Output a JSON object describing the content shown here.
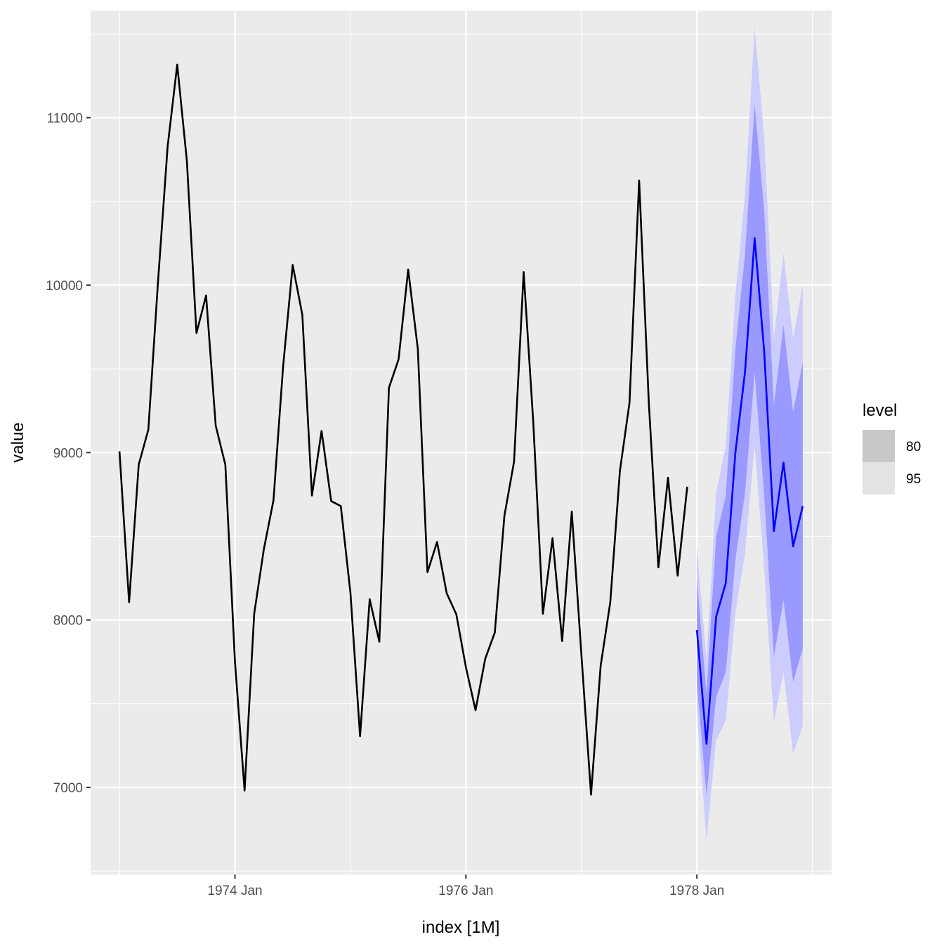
{
  "chart_data": {
    "type": "line",
    "xlabel": "index [1M]",
    "ylabel": "value",
    "x_ticks": [
      "1974 Jan",
      "1976 Jan",
      "1978 Jan"
    ],
    "y_ticks": [
      7000,
      8000,
      9000,
      10000,
      11000
    ],
    "xlim": [
      "1972-10",
      "1979-03"
    ],
    "ylim": [
      6480,
      11640
    ],
    "grid": true,
    "legend": {
      "title": "level",
      "placement": "right",
      "entries": [
        {
          "label": "80",
          "color": "#c8c8c8"
        },
        {
          "label": "95",
          "color": "#e3e3e3"
        }
      ]
    },
    "colors": {
      "panel": "#ebebeb",
      "grid": "#ffffff",
      "history": "#000000",
      "forecast": "#0000ff",
      "interval_80": "#9999ff",
      "interval_95": "#ccccff"
    },
    "history": {
      "start": "1973-01",
      "values": [
        9007,
        8106,
        8928,
        9137,
        10017,
        10826,
        11317,
        10744,
        9713,
        9938,
        9161,
        8927,
        7750,
        6981,
        8038,
        8422,
        8714,
        9512,
        10120,
        9823,
        8743,
        9129,
        8710,
        8680,
        8162,
        7306,
        8124,
        7870,
        9387,
        9556,
        10093,
        9620,
        8285,
        8466,
        8160,
        8034,
        7717,
        7461,
        7767,
        7925,
        8623,
        8945,
        10078,
        9179,
        8037,
        8488,
        7874,
        8647,
        7792,
        6957,
        7726,
        8106,
        8890,
        9299,
        10625,
        9302,
        8314,
        8850,
        8265,
        8796
      ]
    },
    "forecast": {
      "start": "1978-01",
      "mean": [
        7940,
        7260,
        8020,
        8220,
        9000,
        9480,
        10280,
        9600,
        8530,
        8940,
        8440,
        8680
      ],
      "lower_80": [
        7620,
        6950,
        7540,
        7690,
        8360,
        8760,
        9480,
        8740,
        7780,
        8120,
        7630,
        7830
      ],
      "upper_80": [
        8240,
        7560,
        8500,
        8740,
        9620,
        10180,
        11080,
        10440,
        9280,
        9760,
        9240,
        9540
      ],
      "lower_95": [
        7460,
        6680,
        7280,
        7400,
        8040,
        8400,
        9040,
        8300,
        7390,
        7690,
        7200,
        7370
      ],
      "upper_95": [
        8440,
        7760,
        8760,
        9040,
        9940,
        10540,
        11540,
        10880,
        9680,
        10190,
        9680,
        10000
      ]
    }
  }
}
